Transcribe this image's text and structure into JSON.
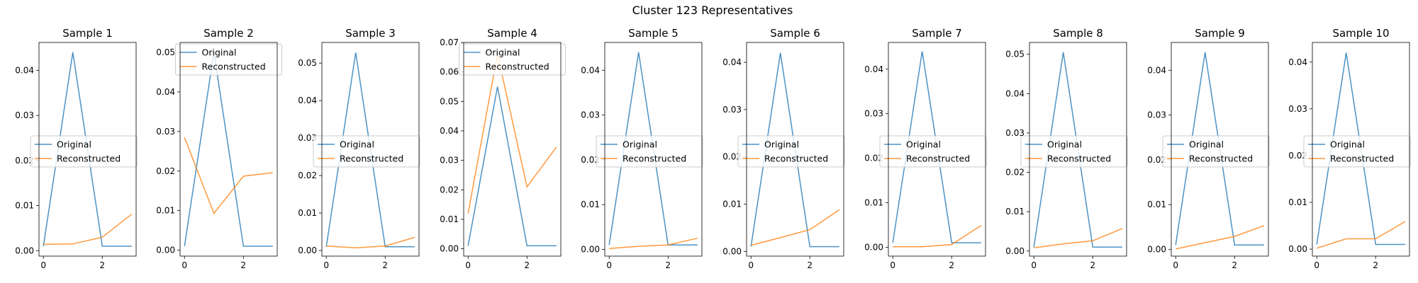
{
  "figure": {
    "suptitle": "Cluster 123 Representatives",
    "colors": {
      "original": "#1f77b4",
      "reconstructed": "#ff7f0e",
      "axes": "#000000"
    }
  },
  "chart_data": [
    {
      "type": "line",
      "title": "Sample 1",
      "x": [
        0,
        1,
        2,
        3
      ],
      "xticks": [
        0,
        2
      ],
      "xlim": [
        -0.15,
        3.15
      ],
      "ylim": [
        -0.0012,
        0.0462
      ],
      "yticks": [
        0,
        0.01,
        0.02,
        0.03,
        0.04
      ],
      "ytick_labels": [
        "0.00",
        "0.01",
        "0.02",
        "0.03",
        "0.04"
      ],
      "legend": "center-left",
      "series": [
        {
          "name": "Original",
          "values": [
            0.001,
            0.044,
            0.001,
            0.001
          ]
        },
        {
          "name": "Reconstructed",
          "values": [
            0.0014,
            0.0015,
            0.003,
            0.0081
          ]
        }
      ]
    },
    {
      "type": "line",
      "title": "Sample 2",
      "x": [
        0,
        1,
        2,
        3
      ],
      "xticks": [
        0,
        2
      ],
      "xlim": [
        -0.15,
        3.15
      ],
      "ylim": [
        -0.0015,
        0.0525
      ],
      "yticks": [
        0,
        0.01,
        0.02,
        0.03,
        0.04,
        0.05
      ],
      "ytick_labels": [
        "0.00",
        "0.01",
        "0.02",
        "0.03",
        "0.04",
        "0.05"
      ],
      "legend": "top",
      "series": [
        {
          "name": "Original",
          "values": [
            0.001,
            0.05,
            0.001,
            0.001
          ]
        },
        {
          "name": "Reconstructed",
          "values": [
            0.0285,
            0.0093,
            0.0187,
            0.0196
          ]
        }
      ]
    },
    {
      "type": "line",
      "title": "Sample 3",
      "x": [
        0,
        1,
        2,
        3
      ],
      "xticks": [
        0,
        2
      ],
      "xlim": [
        -0.15,
        3.15
      ],
      "ylim": [
        -0.0015,
        0.0555
      ],
      "yticks": [
        0,
        0.01,
        0.02,
        0.03,
        0.04,
        0.05
      ],
      "ytick_labels": [
        "0.00",
        "0.01",
        "0.02",
        "0.03",
        "0.04",
        "0.05"
      ],
      "legend": "center-left",
      "series": [
        {
          "name": "Original",
          "values": [
            0.001,
            0.0528,
            0.001,
            0.001
          ]
        },
        {
          "name": "Reconstructed",
          "values": [
            0.0012,
            0.0007,
            0.0012,
            0.0035
          ]
        }
      ]
    },
    {
      "type": "line",
      "title": "Sample 4",
      "x": [
        0,
        1,
        2,
        3
      ],
      "xticks": [
        0,
        2
      ],
      "xlim": [
        -0.15,
        3.15
      ],
      "ylim": [
        -0.0025,
        0.07
      ],
      "yticks": [
        0,
        0.01,
        0.02,
        0.03,
        0.04,
        0.05,
        0.06,
        0.07
      ],
      "ytick_labels": [
        "0.00",
        "0.01",
        "0.02",
        "0.03",
        "0.04",
        "0.05",
        "0.06",
        "0.07"
      ],
      "legend": "top",
      "series": [
        {
          "name": "Original",
          "values": [
            0.001,
            0.055,
            0.001,
            0.001
          ]
        },
        {
          "name": "Reconstructed",
          "values": [
            0.012,
            0.066,
            0.021,
            0.0345
          ]
        }
      ]
    },
    {
      "type": "line",
      "title": "Sample 5",
      "x": [
        0,
        1,
        2,
        3
      ],
      "xticks": [
        0,
        2
      ],
      "xlim": [
        -0.15,
        3.15
      ],
      "ylim": [
        -0.0015,
        0.0462
      ],
      "yticks": [
        0,
        0.01,
        0.02,
        0.03,
        0.04
      ],
      "ytick_labels": [
        "0.00",
        "0.01",
        "0.02",
        "0.03",
        "0.04"
      ],
      "legend": "center-left",
      "series": [
        {
          "name": "Original",
          "values": [
            0.001,
            0.044,
            0.001,
            0.001
          ]
        },
        {
          "name": "Reconstructed",
          "values": [
            0.0002,
            0.0007,
            0.001,
            0.0025
          ]
        }
      ]
    },
    {
      "type": "line",
      "title": "Sample 6",
      "x": [
        0,
        1,
        2,
        3
      ],
      "xticks": [
        0,
        2
      ],
      "xlim": [
        -0.15,
        3.15
      ],
      "ylim": [
        -0.001,
        0.0442
      ],
      "yticks": [
        0,
        0.01,
        0.02,
        0.03,
        0.04
      ],
      "ytick_labels": [
        "0.00",
        "0.01",
        "0.02",
        "0.03",
        "0.04"
      ],
      "legend": "center-left",
      "series": [
        {
          "name": "Original",
          "values": [
            0.001,
            0.042,
            0.001,
            0.001
          ]
        },
        {
          "name": "Reconstructed",
          "values": [
            0.0013,
            0.0029,
            0.0046,
            0.0088
          ]
        }
      ]
    },
    {
      "type": "line",
      "title": "Sample 7",
      "x": [
        0,
        1,
        2,
        3
      ],
      "xticks": [
        0,
        2
      ],
      "xlim": [
        -0.15,
        3.15
      ],
      "ylim": [
        -0.002,
        0.046
      ],
      "yticks": [
        0,
        0.01,
        0.02,
        0.03,
        0.04
      ],
      "ytick_labels": [
        "0.00",
        "0.01",
        "0.02",
        "0.03",
        "0.04"
      ],
      "legend": "center-left",
      "series": [
        {
          "name": "Original",
          "values": [
            0.001,
            0.044,
            0.001,
            0.001
          ]
        },
        {
          "name": "Reconstructed",
          "values": [
            0.0001,
            0.0001,
            0.0006,
            0.0049
          ]
        }
      ]
    },
    {
      "type": "line",
      "title": "Sample 8",
      "x": [
        0,
        1,
        2,
        3
      ],
      "xticks": [
        0,
        2
      ],
      "xlim": [
        -0.15,
        3.15
      ],
      "ylim": [
        -0.0013,
        0.053
      ],
      "yticks": [
        0,
        0.01,
        0.02,
        0.03,
        0.04,
        0.05
      ],
      "ytick_labels": [
        "0.00",
        "0.01",
        "0.02",
        "0.03",
        "0.04",
        "0.05"
      ],
      "legend": "center-left",
      "series": [
        {
          "name": "Original",
          "values": [
            0.001,
            0.0505,
            0.001,
            0.001
          ]
        },
        {
          "name": "Reconstructed",
          "values": [
            0.0008,
            0.0018,
            0.0026,
            0.0057
          ]
        }
      ]
    },
    {
      "type": "line",
      "title": "Sample 9",
      "x": [
        0,
        1,
        2,
        3
      ],
      "xticks": [
        0,
        2
      ],
      "xlim": [
        -0.15,
        3.15
      ],
      "ylim": [
        -0.0015,
        0.0462
      ],
      "yticks": [
        0,
        0.01,
        0.02,
        0.03,
        0.04
      ],
      "ytick_labels": [
        "0.00",
        "0.01",
        "0.02",
        "0.03",
        "0.04"
      ],
      "legend": "center-left",
      "series": [
        {
          "name": "Original",
          "values": [
            0.001,
            0.044,
            0.001,
            0.001
          ]
        },
        {
          "name": "Reconstructed",
          "values": [
            0.0001,
            0.0015,
            0.0029,
            0.0053
          ]
        }
      ]
    },
    {
      "type": "line",
      "title": "Sample 10",
      "x": [
        0,
        1,
        2,
        3
      ],
      "xticks": [
        0,
        2
      ],
      "xlim": [
        -0.15,
        3.15
      ],
      "ylim": [
        -0.0015,
        0.0442
      ],
      "yticks": [
        0,
        0.01,
        0.02,
        0.03,
        0.04
      ],
      "ytick_labels": [
        "0.00",
        "0.01",
        "0.02",
        "0.03",
        "0.04"
      ],
      "legend": "center-left",
      "series": [
        {
          "name": "Original",
          "values": [
            0.001,
            0.042,
            0.001,
            0.001
          ]
        },
        {
          "name": "Reconstructed",
          "values": [
            0.0002,
            0.0022,
            0.0022,
            0.0059
          ]
        }
      ]
    }
  ]
}
